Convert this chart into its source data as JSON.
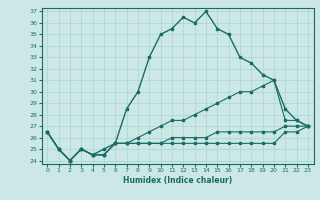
{
  "xlabel": "Humidex (Indice chaleur)",
  "ylabel": "",
  "bg_color": "#cce8e6",
  "line_color": "#1a6b65",
  "grid_color": "#aad4d0",
  "xlim": [
    -0.5,
    23.5
  ],
  "ylim": [
    23.7,
    37.3
  ],
  "yticks": [
    24,
    25,
    26,
    27,
    28,
    29,
    30,
    31,
    32,
    33,
    34,
    35,
    36,
    37
  ],
  "xticks": [
    0,
    1,
    2,
    3,
    4,
    5,
    6,
    7,
    8,
    9,
    10,
    11,
    12,
    13,
    14,
    15,
    16,
    17,
    18,
    19,
    20,
    21,
    22,
    23
  ],
  "series": [
    {
      "x": [
        0,
        1,
        2,
        3,
        4,
        5,
        6,
        7,
        8,
        9,
        10,
        11,
        12,
        13,
        14,
        15,
        16,
        17,
        18,
        19,
        20,
        21,
        22,
        23
      ],
      "y": [
        26.5,
        25.0,
        24.0,
        25.0,
        24.5,
        25.0,
        25.5,
        28.5,
        30.0,
        33.0,
        35.0,
        35.5,
        36.5,
        36.0,
        37.0,
        35.5,
        35.0,
        33.0,
        32.5,
        31.5,
        31.0,
        28.5,
        27.5,
        27.0
      ]
    },
    {
      "x": [
        0,
        1,
        2,
        3,
        4,
        5,
        6,
        7,
        8,
        9,
        10,
        11,
        12,
        13,
        14,
        15,
        16,
        17,
        18,
        19,
        20,
        21,
        22,
        23
      ],
      "y": [
        26.5,
        25.0,
        24.0,
        25.0,
        24.5,
        24.5,
        25.5,
        25.5,
        26.0,
        26.5,
        27.0,
        27.5,
        27.5,
        28.0,
        28.5,
        29.0,
        29.5,
        30.0,
        30.0,
        30.5,
        31.0,
        27.5,
        27.5,
        27.0
      ]
    },
    {
      "x": [
        0,
        1,
        2,
        3,
        4,
        5,
        6,
        7,
        8,
        9,
        10,
        11,
        12,
        13,
        14,
        15,
        16,
        17,
        18,
        19,
        20,
        21,
        22,
        23
      ],
      "y": [
        26.5,
        25.0,
        24.0,
        25.0,
        24.5,
        24.5,
        25.5,
        25.5,
        25.5,
        25.5,
        25.5,
        25.5,
        25.5,
        25.5,
        25.5,
        25.5,
        25.5,
        25.5,
        25.5,
        25.5,
        25.5,
        26.5,
        26.5,
        27.0
      ]
    },
    {
      "x": [
        0,
        1,
        2,
        3,
        4,
        5,
        6,
        7,
        8,
        9,
        10,
        11,
        12,
        13,
        14,
        15,
        16,
        17,
        18,
        19,
        20,
        21,
        22,
        23
      ],
      "y": [
        26.5,
        25.0,
        24.0,
        25.0,
        24.5,
        24.5,
        25.5,
        25.5,
        25.5,
        25.5,
        25.5,
        26.0,
        26.0,
        26.0,
        26.0,
        26.5,
        26.5,
        26.5,
        26.5,
        26.5,
        26.5,
        27.0,
        27.0,
        27.0
      ]
    }
  ]
}
